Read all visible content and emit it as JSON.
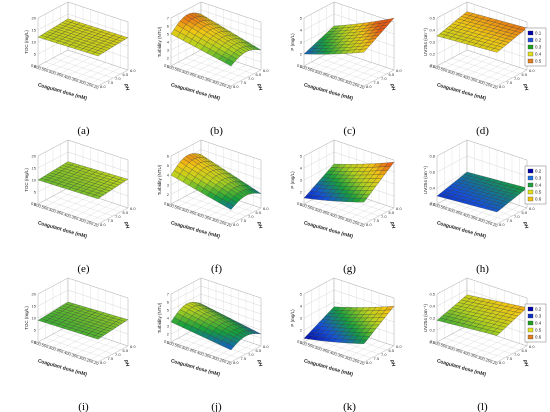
{
  "figure": {
    "rows": [
      {
        "legend": {
          "labels": [
            "0.1",
            "0.2",
            "0.3",
            "0.4",
            "0.5"
          ],
          "colors": [
            "#0000a8",
            "#2050d8",
            "#20a020",
            "#e0e020",
            "#e08020"
          ]
        }
      },
      {
        "legend": {
          "labels": [
            "0.2",
            "0.3",
            "0.4",
            "0.5",
            "0.6"
          ],
          "colors": [
            "#0000a8",
            "#2070e0",
            "#20a040",
            "#e0e020",
            "#f0c010"
          ]
        }
      },
      {
        "legend": {
          "labels": [
            "0.2",
            "0.3",
            "0.4",
            "0.5",
            "0.6"
          ],
          "colors": [
            "#0000a8",
            "#1030c0",
            "#20a020",
            "#e0e020",
            "#e08020"
          ]
        }
      }
    ]
  },
  "chart_data": [
    {
      "panel": "(a)",
      "type": "surface",
      "zlabel": "TOC (mg/L)",
      "xlabel": "Coagulant dose (mM)",
      "ylabel": "pH",
      "zticks": [
        "0",
        "5",
        "10",
        "15",
        "20"
      ],
      "xticks": [
        "0.60",
        "0.55",
        "0.50",
        "0.45",
        "0.40",
        "0.35",
        "0.30",
        "0.25",
        "0.20"
      ],
      "yticks": [
        "8.0",
        "7.5",
        "7.0",
        "6.5",
        "6.0"
      ],
      "zlim": [
        0,
        20
      ],
      "z_corners": [
        12,
        12.5,
        13.5,
        13
      ]
    },
    {
      "panel": "(b)",
      "type": "surface",
      "zlabel": "Turbidity (NTU)",
      "xlabel": "Coagulant dose (mM)",
      "ylabel": "pH",
      "zticks": [
        "1",
        "2",
        "3",
        "4",
        "5",
        "6",
        "7"
      ],
      "xticks": [
        "0.60",
        "0.55",
        "0.50",
        "0.45",
        "0.40",
        "0.35",
        "0.30",
        "0.25",
        "0.20"
      ],
      "yticks": [
        "8.0",
        "7.5",
        "7.0",
        "6.5",
        "6.0"
      ],
      "zlim": [
        1,
        7
      ],
      "z_corners": [
        5,
        3.5,
        3.5,
        5.5
      ]
    },
    {
      "panel": "(c)",
      "type": "surface",
      "zlabel": "P (mg/L)",
      "xlabel": "Coagulant dose (mM)",
      "ylabel": "pH",
      "zticks": [
        "1",
        "2",
        "3",
        "4",
        "5"
      ],
      "xticks": [
        "0.60",
        "0.55",
        "0.50",
        "0.45",
        "0.40",
        "0.35",
        "0.30",
        "0.25",
        "0.20"
      ],
      "yticks": [
        "8.0",
        "7.5",
        "7.0",
        "6.5",
        "6.0"
      ],
      "zlim": [
        1,
        5
      ],
      "z_corners": [
        2,
        3.5,
        5,
        3
      ]
    },
    {
      "panel": "(d)",
      "type": "surface",
      "zlabel": "UV254 (cm⁻¹)",
      "xlabel": "Coagulant dose (mM)",
      "ylabel": "pH",
      "zticks": [
        "0.1",
        "0.2",
        "0.3",
        "0.4",
        "0.5"
      ],
      "xticks": [
        "0.60",
        "0.55",
        "0.50",
        "0.45",
        "0.40",
        "0.35",
        "0.30",
        "0.25",
        "0.20"
      ],
      "yticks": [
        "8.0",
        "7.5",
        "7.0",
        "6.5",
        "6.0"
      ],
      "zlim": [
        0.1,
        0.5
      ],
      "z_corners": [
        0.35,
        0.38,
        0.45,
        0.42
      ]
    },
    {
      "panel": "(e)",
      "type": "surface",
      "zlabel": "TOC (mg/L)",
      "xlabel": "Coagulant dose (mM)",
      "ylabel": "pH",
      "zticks": [
        "0",
        "5",
        "10",
        "15",
        "20"
      ],
      "xticks": [
        "0.60",
        "0.55",
        "0.50",
        "0.45",
        "0.40",
        "0.35",
        "0.30",
        "0.25",
        "0.20"
      ],
      "yticks": [
        "8.0",
        "7.5",
        "7.0",
        "6.5",
        "6.0"
      ],
      "zlim": [
        0,
        20
      ],
      "z_corners": [
        10,
        10.5,
        12,
        11
      ]
    },
    {
      "panel": "(f)",
      "type": "surface",
      "zlabel": "Turbidity (NTU)",
      "xlabel": "Coagulant dose (mM)",
      "ylabel": "pH",
      "zticks": [
        "1",
        "2",
        "3",
        "4",
        "5",
        "6"
      ],
      "xticks": [
        "0.60",
        "0.55",
        "0.50",
        "0.45",
        "0.40",
        "0.35",
        "0.30",
        "0.25",
        "0.20"
      ],
      "yticks": [
        "8.0",
        "7.5",
        "7.0",
        "6.5",
        "6.0"
      ],
      "zlim": [
        1,
        6
      ],
      "z_corners": [
        4,
        2.5,
        2.5,
        4.5
      ]
    },
    {
      "panel": "(g)",
      "type": "surface",
      "zlabel": "P (mg/L)",
      "xlabel": "Coagulant dose (mM)",
      "ylabel": "pH",
      "zticks": [
        "1",
        "2",
        "3",
        "4",
        "5"
      ],
      "xticks": [
        "0.60",
        "0.55",
        "0.50",
        "0.45",
        "0.40",
        "0.35",
        "0.30",
        "0.25",
        "0.20"
      ],
      "yticks": [
        "8.0",
        "7.5",
        "7.0",
        "6.5",
        "6.0"
      ],
      "zlim": [
        1,
        5
      ],
      "z_corners": [
        1.5,
        2.5,
        4.5,
        3
      ]
    },
    {
      "panel": "(h)",
      "type": "surface",
      "zlabel": "UV254 (cm⁻¹)",
      "xlabel": "Coagulant dose (mM)",
      "ylabel": "pH",
      "zticks": [
        "0.2",
        "0.4",
        "0.6",
        "0.8"
      ],
      "xticks": [
        "0.60",
        "0.55",
        "0.50",
        "0.45",
        "0.40",
        "0.35",
        "0.30",
        "0.25",
        "0.20"
      ],
      "yticks": [
        "8.0",
        "7.5",
        "7.0",
        "6.5",
        "6.0"
      ],
      "zlim": [
        0.2,
        0.8
      ],
      "z_corners": [
        0.3,
        0.35,
        0.45,
        0.4
      ]
    },
    {
      "panel": "(i)",
      "type": "surface",
      "zlabel": "TOC (mg/L)",
      "xlabel": "Coagulant dose (mM)",
      "ylabel": "pH",
      "zticks": [
        "0",
        "5",
        "10",
        "15",
        "20"
      ],
      "xticks": [
        "0.60",
        "0.55",
        "0.50",
        "0.45",
        "0.40",
        "0.35",
        "0.30",
        "0.25",
        "0.20"
      ],
      "yticks": [
        "8.0",
        "7.5",
        "7.0",
        "6.5",
        "6.0"
      ],
      "zlim": [
        0,
        20
      ],
      "z_corners": [
        9,
        9.5,
        11,
        10
      ]
    },
    {
      "panel": "(j)",
      "type": "surface",
      "zlabel": "Turbidity (NTU)",
      "xlabel": "Coagulant dose (mM)",
      "ylabel": "pH",
      "zticks": [
        "1",
        "2",
        "3",
        "4",
        "5",
        "6",
        "7"
      ],
      "xticks": [
        "0.60",
        "0.55",
        "0.50",
        "0.45",
        "0.40",
        "0.35",
        "0.30",
        "0.25",
        "0.20"
      ],
      "yticks": [
        "8.0",
        "7.5",
        "7.0",
        "6.5",
        "6.0"
      ],
      "zlim": [
        1,
        7
      ],
      "z_corners": [
        3.5,
        2.5,
        2.5,
        3.8
      ]
    },
    {
      "panel": "(k)",
      "type": "surface",
      "zlabel": "P (mg/L)",
      "xlabel": "Coagulant dose (mM)",
      "ylabel": "pH",
      "zticks": [
        "1",
        "2",
        "3",
        "4",
        "5"
      ],
      "xticks": [
        "0.60",
        "0.55",
        "0.50",
        "0.45",
        "0.40",
        "0.35",
        "0.30",
        "0.25",
        "0.20"
      ],
      "yticks": [
        "8.0",
        "7.5",
        "7.0",
        "6.5",
        "6.0"
      ],
      "zlim": [
        1,
        5
      ],
      "z_corners": [
        1.3,
        2.2,
        4,
        2.6
      ]
    },
    {
      "panel": "(l)",
      "type": "surface",
      "zlabel": "UV254 (cm⁻¹)",
      "xlabel": "Coagulant dose (mM)",
      "ylabel": "pH",
      "zticks": [
        "0.1",
        "0.2",
        "0.3",
        "0.4",
        "0.5"
      ],
      "xticks": [
        "0.60",
        "0.55",
        "0.50",
        "0.45",
        "0.40",
        "0.35",
        "0.30",
        "0.25",
        "0.20"
      ],
      "yticks": [
        "8.0",
        "7.5",
        "7.0",
        "6.5",
        "6.0"
      ],
      "zlim": [
        0.1,
        0.5
      ],
      "z_corners": [
        0.28,
        0.32,
        0.42,
        0.36
      ]
    }
  ]
}
